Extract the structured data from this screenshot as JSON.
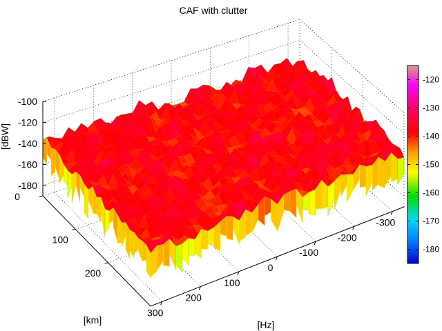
{
  "chart_data": {
    "type": "surface",
    "title": "CAF with clutter",
    "xlabel": "[Hz]",
    "ylabel": "[km]",
    "zlabel": "[dBW]",
    "x_ticks": [
      300,
      200,
      100,
      0,
      -100,
      -200,
      -300
    ],
    "y_ticks": [
      0,
      100,
      200
    ],
    "z_ticks": [
      -100,
      -120,
      -140,
      -160,
      -180
    ],
    "xlim": [
      330,
      -330
    ],
    "ylim": [
      0,
      330
    ],
    "zlim": [
      -190,
      -100
    ],
    "grid": true,
    "surface": {
      "description_level_mean_dBW": -138,
      "noise_spread_dBW": 8,
      "peak_max_dBW": -128,
      "dip_min_dBW": -162,
      "x_range_Hz": [
        -330,
        330
      ],
      "y_range_km": [
        0,
        330
      ]
    },
    "colorbar": {
      "ticks": [
        -120,
        -130,
        -140,
        -150,
        -160,
        -170,
        -180
      ],
      "range": [
        -185,
        -115
      ],
      "colormap": "hsv-like",
      "placement": "right",
      "stops": [
        "#0000c8",
        "#0070ff",
        "#00d8ff",
        "#00e000",
        "#ffff00",
        "#ffa000",
        "#ff0000",
        "#ff0060",
        "#ff00ff",
        "#d8a080"
      ]
    }
  }
}
